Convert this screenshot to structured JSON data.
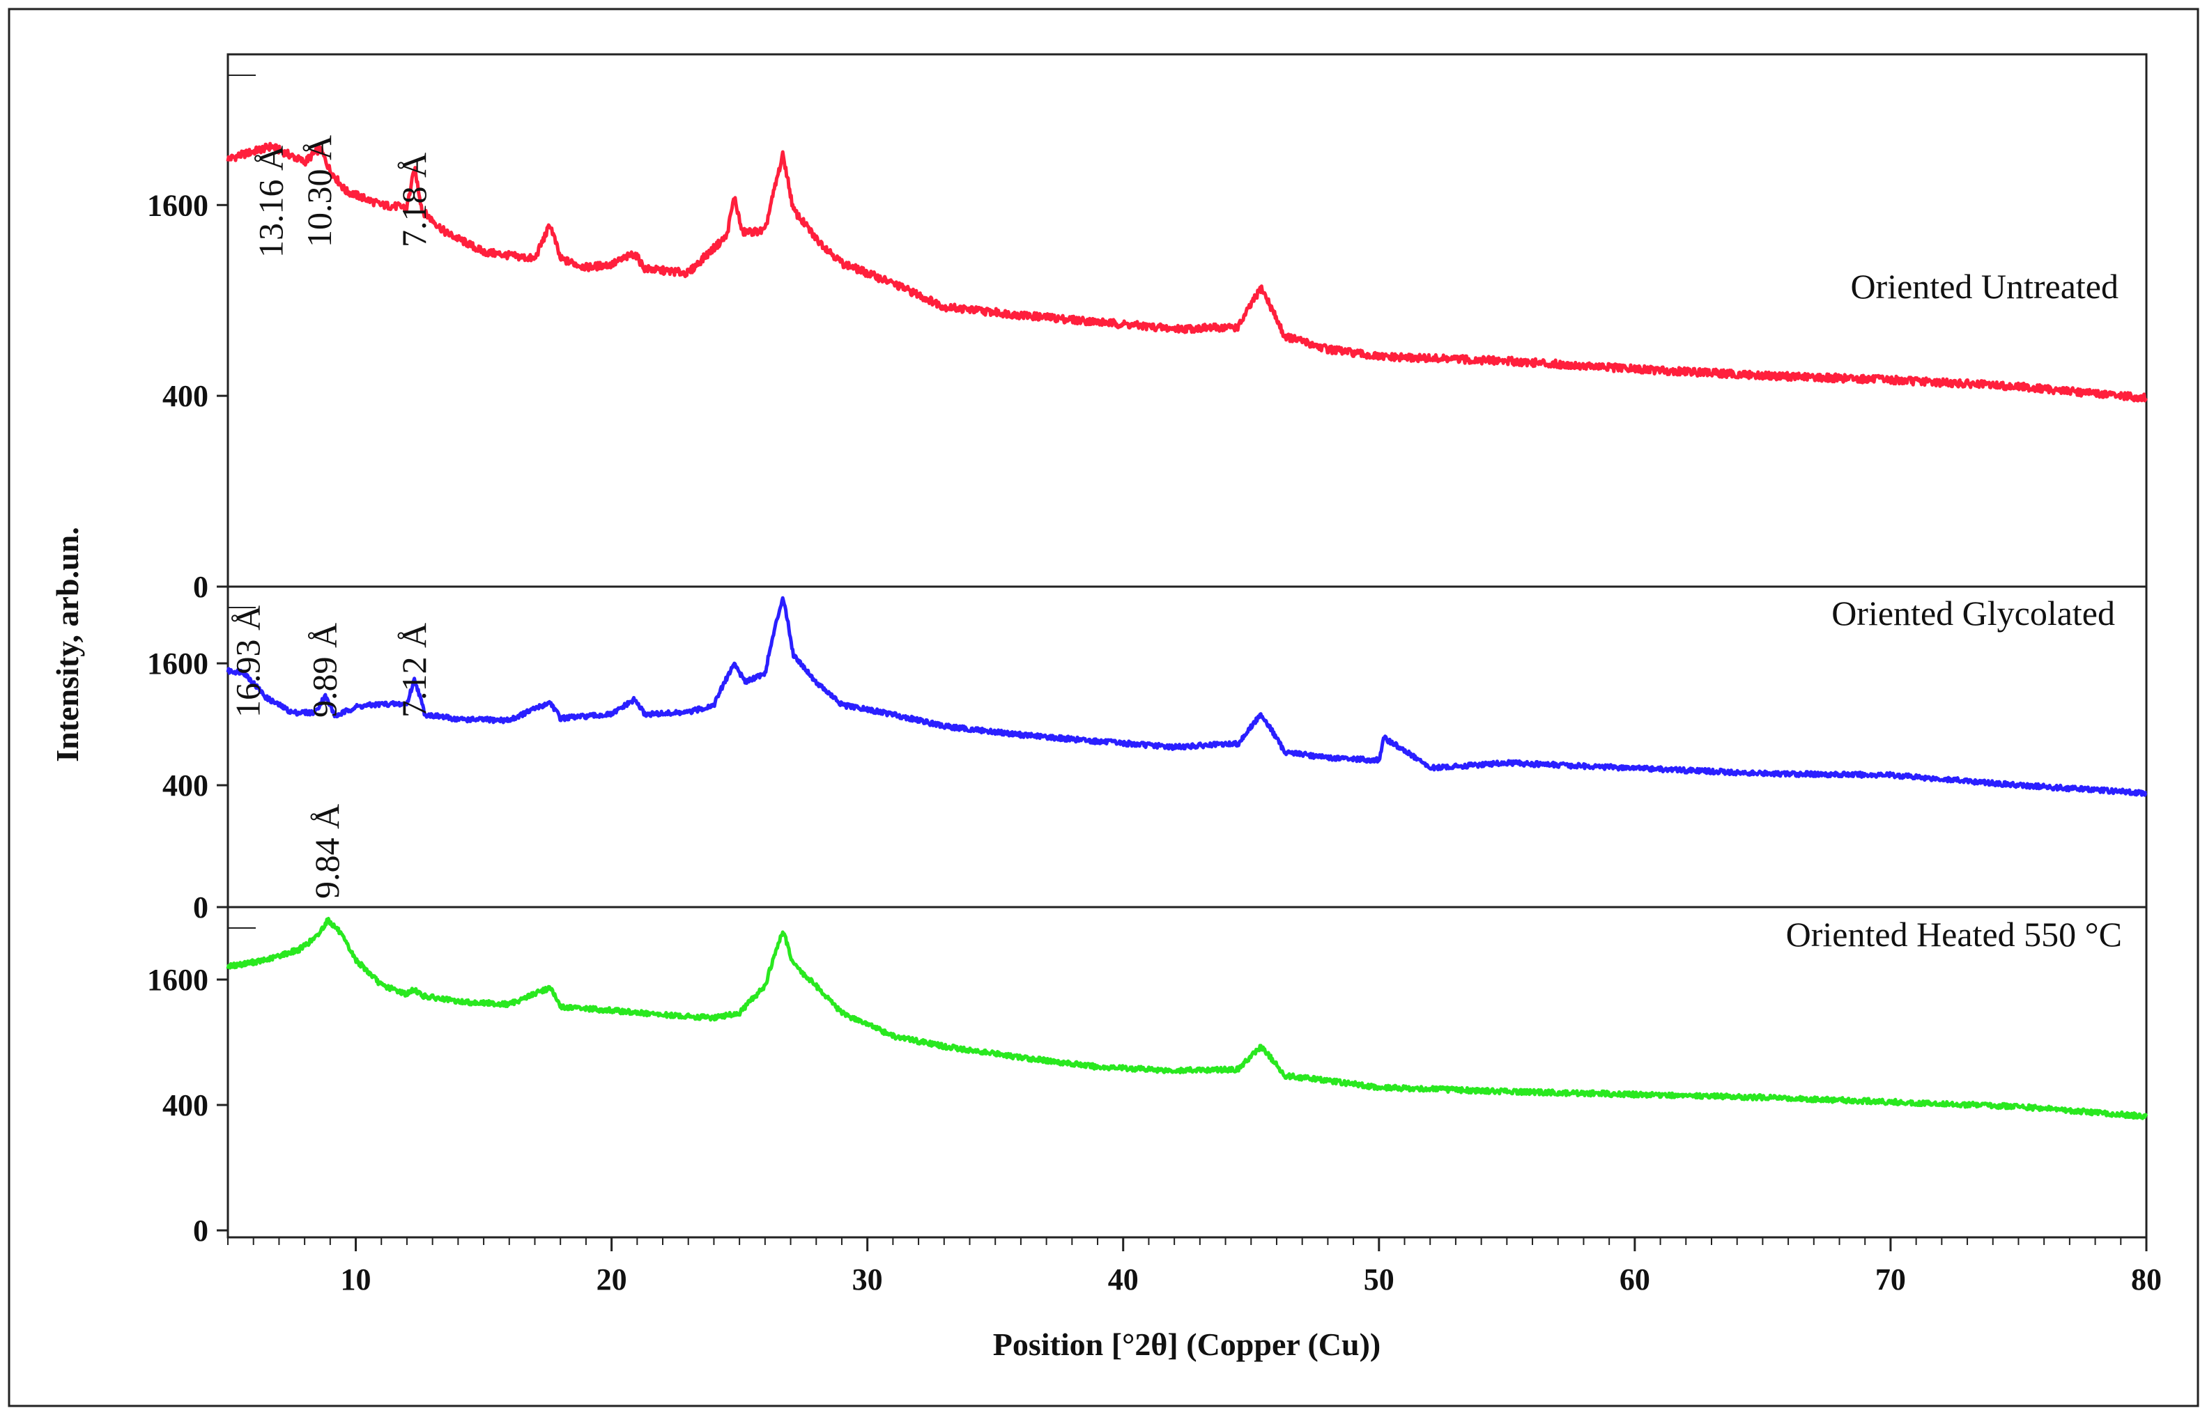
{
  "chart_data": {
    "type": "line",
    "xlabel": "Position  [°2θ] (Copper (Cu))",
    "ylabel": "Intensity, arb.un.",
    "xlim": [
      5,
      80
    ],
    "xticks": [
      10,
      20,
      30,
      40,
      50,
      60,
      70,
      80
    ],
    "x_minor_tick_step": 1,
    "grid": false,
    "layout": "three stacked panels sharing the x axis",
    "panels": [
      {
        "series_name": "Oriented Untreated",
        "color": "#ff1f3c",
        "yticks": [
          0,
          400,
          1600
        ],
        "ylim": [
          0,
          3000
        ],
        "peak_labels": [
          {
            "x": 6.7,
            "text": "13.16  Å"
          },
          {
            "x": 8.6,
            "text": "10.30 Å"
          },
          {
            "x": 12.3,
            "text": "7.18 Å"
          }
        ],
        "x": [
          5,
          6.7,
          8.0,
          8.6,
          9.0,
          9.6,
          11.0,
          12.0,
          12.3,
          12.6,
          13.5,
          15.0,
          17.0,
          17.6,
          18.0,
          19.0,
          20.0,
          20.9,
          21.3,
          23.0,
          24.5,
          24.8,
          25.1,
          26.0,
          26.7,
          27.1,
          28.0,
          29.0,
          31.0,
          33.0,
          36.0,
          39.0,
          42.0,
          44.5,
          45.4,
          46.3,
          48.0,
          50.0,
          55.0,
          60.0,
          65.0,
          70.0,
          75.0,
          80.0
        ],
        "y": [
          2010,
          2130,
          1980,
          2110,
          1900,
          1720,
          1600,
          1580,
          1920,
          1550,
          1380,
          1230,
          1180,
          1440,
          1180,
          1120,
          1140,
          1220,
          1110,
          1080,
          1350,
          1670,
          1380,
          1390,
          2050,
          1560,
          1330,
          1150,
          1010,
          860,
          810,
          770,
          730,
          740,
          980,
          690,
          620,
          580,
          560,
          520,
          490,
          470,
          440,
          390
        ]
      },
      {
        "series_name": "Oriented Glycolated",
        "color": "#2a1fff",
        "yticks": [
          0,
          400,
          1600
        ],
        "ylim": [
          0,
          2600
        ],
        "peak_labels": [
          {
            "x": 5.8,
            "text": "16.93 Å"
          },
          {
            "x": 8.8,
            "text": "9.89 Å"
          },
          {
            "x": 12.3,
            "text": "7.12 Å"
          }
        ],
        "x": [
          5,
          5.6,
          6.5,
          7.5,
          8.4,
          8.8,
          9.2,
          10.0,
          11.0,
          12.0,
          12.3,
          12.7,
          14.0,
          16.0,
          17.6,
          18.0,
          20.0,
          20.9,
          21.3,
          23.0,
          24.0,
          24.8,
          25.2,
          26.0,
          26.7,
          27.1,
          28.0,
          29.0,
          31.0,
          33.0,
          36.0,
          39.0,
          42.0,
          44.5,
          45.4,
          46.3,
          48.0,
          50.0,
          50.2,
          52.0,
          55.0,
          60.0,
          65.0,
          70.0,
          75.0,
          80.0
        ],
        "y": [
          1500,
          1490,
          1180,
          1020,
          1020,
          1200,
          980,
          1080,
          1110,
          1110,
          1400,
          1000,
          950,
          940,
          1130,
          960,
          1000,
          1160,
          1000,
          1020,
          1100,
          1600,
          1370,
          1470,
          2600,
          1720,
          1360,
          1100,
          1000,
          880,
          800,
          740,
          690,
          720,
          1000,
          650,
          600,
          580,
          770,
          520,
          560,
          520,
          480,
          470,
          400,
          350
        ]
      },
      {
        "series_name": "Oriented Heated 550 °C",
        "color": "#29e81f",
        "yticks": [
          0,
          400,
          1600
        ],
        "ylim": [
          0,
          2500
        ],
        "peak_labels": [
          {
            "x": 8.9,
            "text": "9.84 Å"
          }
        ],
        "x": [
          5,
          6.5,
          7.8,
          8.5,
          8.9,
          9.3,
          10.0,
          11.0,
          12.0,
          12.3,
          12.6,
          14.0,
          16.0,
          17.6,
          18.0,
          20.0,
          22.0,
          24.0,
          25.0,
          26.0,
          26.7,
          27.1,
          28.0,
          29.0,
          31.0,
          33.0,
          36.0,
          39.0,
          42.0,
          44.5,
          45.4,
          46.3,
          48.0,
          50.0,
          55.0,
          60.0,
          65.0,
          70.0,
          75.0,
          80.0
        ],
        "y": [
          1770,
          1860,
          2010,
          2200,
          2450,
          2300,
          1860,
          1530,
          1420,
          1480,
          1400,
          1330,
          1300,
          1500,
          1270,
          1230,
          1180,
          1150,
          1200,
          1520,
          2280,
          1800,
          1520,
          1200,
          960,
          860,
          760,
          680,
          650,
          660,
          860,
          610,
          570,
          520,
          490,
          470,
          450,
          420,
          390,
          330
        ]
      }
    ]
  }
}
